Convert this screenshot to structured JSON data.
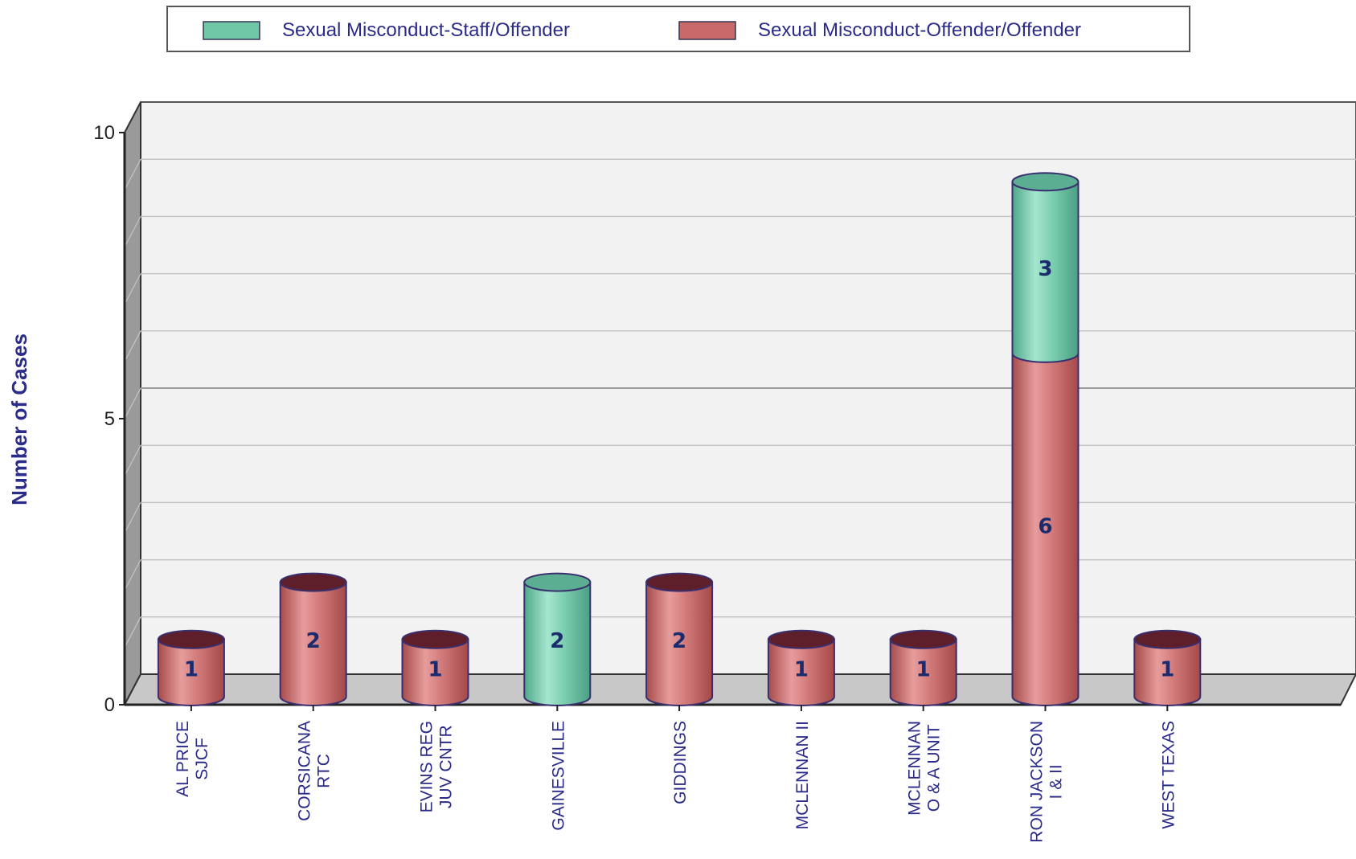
{
  "chart_data": {
    "type": "bar",
    "stacked": true,
    "style": "3d-cylinder",
    "categories": [
      [
        "AL PRICE",
        "SJCF"
      ],
      [
        "CORSICANA",
        "RTC"
      ],
      [
        "EVINS REG",
        "JUV CNTR"
      ],
      [
        "GAINESVILLE"
      ],
      [
        "GIDDINGS"
      ],
      [
        "MCLENNAN II"
      ],
      [
        "MCLENNAN",
        "O & A UNIT"
      ],
      [
        "RON JACKSON",
        "I & II"
      ],
      [
        "WEST TEXAS"
      ]
    ],
    "series": [
      {
        "name": "Sexual Misconduct-Offender/Offender",
        "color": "#c86a6a",
        "values": [
          1,
          2,
          1,
          0,
          2,
          1,
          1,
          6,
          1
        ]
      },
      {
        "name": "Sexual Misconduct-Staff/Offender",
        "color": "#6fc7a8",
        "values": [
          0,
          0,
          0,
          2,
          0,
          0,
          0,
          3,
          0
        ]
      }
    ],
    "legend_order": [
      1,
      0
    ],
    "legend_position": "top",
    "ylabel": "Number of Cases",
    "xlabel": "",
    "ylim": [
      0,
      10
    ],
    "yticks": [
      0,
      5,
      10
    ],
    "grid": true,
    "colors": {
      "background": "#f2f2f2",
      "floor": "#c8c8c8",
      "text": "#2b2b8a",
      "value_label": "#1c2a6e"
    }
  }
}
